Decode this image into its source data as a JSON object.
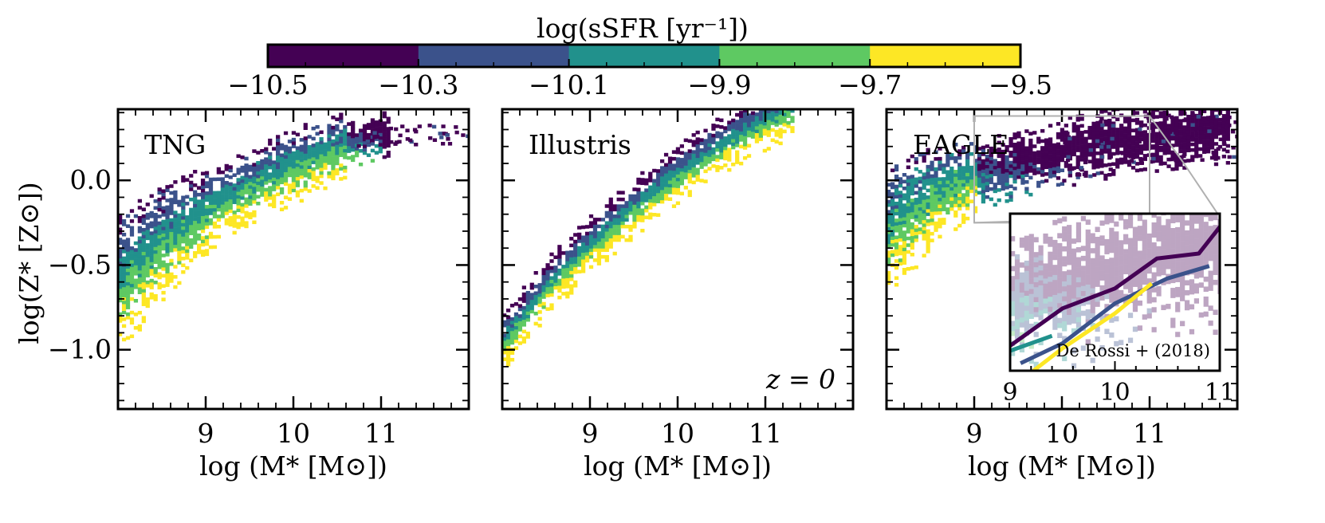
{
  "chart_data": {
    "type": "heatmap",
    "colorbar": {
      "label": "log(sSFR [yr⁻¹])",
      "ticks": [
        "−10.5",
        "−10.3",
        "−10.1",
        "−9.9",
        "−9.7",
        "−9.5"
      ],
      "bins": [
        {
          "range": [
            -10.5,
            -10.3
          ],
          "color": "#440154"
        },
        {
          "range": [
            -10.3,
            -10.1
          ],
          "color": "#3b528b"
        },
        {
          "range": [
            -10.1,
            -9.9
          ],
          "color": "#21918c"
        },
        {
          "range": [
            -9.9,
            -9.7
          ],
          "color": "#5ec962"
        },
        {
          "range": [
            -9.7,
            -9.5
          ],
          "color": "#fde725"
        }
      ]
    },
    "xlim": [
      8.0,
      12.0
    ],
    "ylim": [
      -1.35,
      0.42
    ],
    "xticks": [
      "9",
      "10",
      "11"
    ],
    "yticks": [
      "0.0",
      "−0.5",
      "−1.0"
    ],
    "xlabel": "log (M* [M⊙])",
    "ylabel": "log(Z* [Z⊙])",
    "redshift_label": "z = 0",
    "panels": [
      {
        "name": "TNG",
        "relation": {
          "xs": [
            8.0,
            8.5,
            9.0,
            9.5,
            10.0,
            10.5,
            11.0
          ],
          "ys": [
            -0.6,
            -0.36,
            -0.18,
            -0.04,
            0.08,
            0.18,
            0.26
          ]
        },
        "range": [
          8.0,
          11.1
        ],
        "width": 0.14,
        "tail": [
          10.7,
          12.0
        ],
        "gradient": "high-sSFR (yellow) below the ridge, green centre, teal/blue on top, purple at high mass"
      },
      {
        "name": "Illustris",
        "relation": {
          "xs": [
            8.0,
            8.5,
            9.0,
            9.5,
            10.0,
            10.5,
            11.0,
            11.3
          ],
          "ys": [
            -0.95,
            -0.63,
            -0.38,
            -0.16,
            0.04,
            0.21,
            0.35,
            0.42
          ]
        },
        "range": [
          8.0,
          11.3
        ],
        "width": 0.11,
        "tail": [
          11.3,
          11.3
        ],
        "gradient": "teal/blue upper side, green and yellow lower side"
      },
      {
        "name": "EAGLE",
        "relation": {
          "xs": [
            8.0,
            8.5,
            9.0,
            9.5,
            10.0,
            10.5,
            11.0,
            11.5
          ],
          "ys": [
            -0.3,
            -0.12,
            0.02,
            0.1,
            0.16,
            0.21,
            0.25,
            0.28
          ]
        },
        "range": [
          8.0,
          11.9
        ],
        "width": 0.13,
        "tail": [
          10.0,
          12.0
        ],
        "gradient": "purple at high mass, teal/green/yellow spread below at low mass",
        "inset": {
          "note": "De Rossi + (2018)",
          "xticks": [
            "9",
            "10",
            "11"
          ],
          "xlim": [
            9.0,
            11.0
          ],
          "ylim": [
            -0.25,
            0.38
          ],
          "zoom_box": {
            "x": [
              9.0,
              11.0
            ],
            "y": [
              -0.25,
              0.38
            ]
          },
          "lines": [
            {
              "color": "#440154",
              "x": [
                9.0,
                9.5,
                10.0,
                10.4,
                10.8,
                11.1
              ],
              "y": [
                -0.15,
                0.0,
                0.08,
                0.2,
                0.22,
                0.38
              ]
            },
            {
              "color": "#3b528b",
              "x": [
                9.1,
                9.5,
                10.0,
                10.5,
                10.9
              ],
              "y": [
                -0.22,
                -0.14,
                0.02,
                0.12,
                0.17
              ]
            },
            {
              "color": "#fde725",
              "x": [
                9.1,
                9.5,
                10.0,
                10.35
              ],
              "y": [
                -0.29,
                -0.16,
                -0.02,
                0.1
              ]
            },
            {
              "color": "#21918c",
              "x": [
                9.0,
                9.4
              ],
              "y": [
                -0.17,
                -0.11
              ]
            }
          ]
        }
      }
    ]
  }
}
